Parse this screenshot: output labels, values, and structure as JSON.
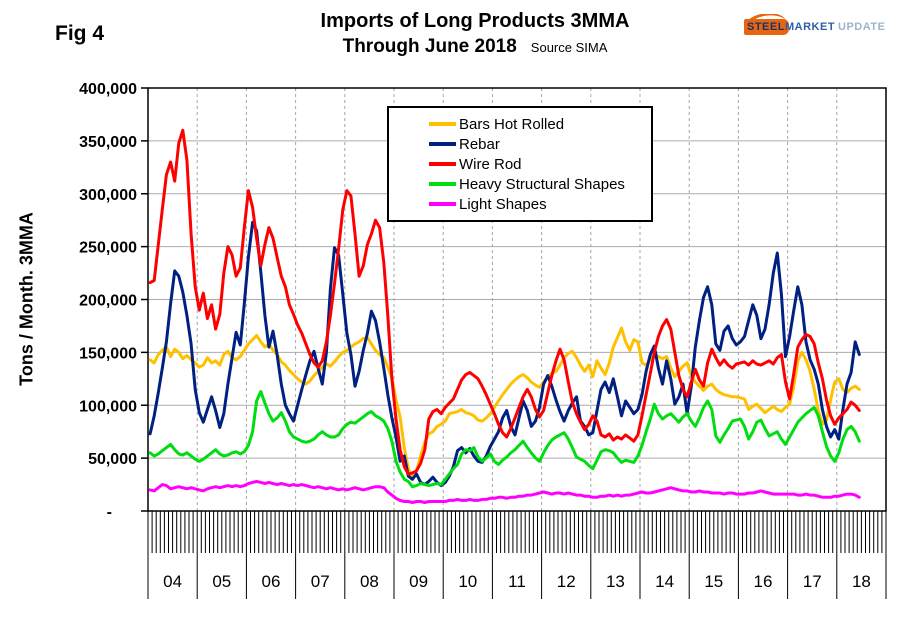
{
  "header": {
    "fig_label": "Fig 4",
    "title": "Imports of Long Products 3MMA",
    "subtitle": "Through June 2018",
    "source": "Source SIMA"
  },
  "logo": {
    "steel": "STEEL",
    "market": "MARKET",
    "update": "UPDATE"
  },
  "chart_data": {
    "type": "line",
    "title": "Imports of Long Products 3MMA",
    "subtitle": "Through June 2018",
    "source": "Source SIMA",
    "ylabel": "Tons / Month. 3MMA",
    "unit": "thousand tons per month (3-month moving average)",
    "ylim": [
      0,
      400000
    ],
    "y_tick_step": 50000,
    "y_tick_labels": [
      "400,000",
      "350,000",
      "300,000",
      "250,000",
      "200,000",
      "150,000",
      "100,000",
      "50,000",
      "-"
    ],
    "x_start": "2004-01",
    "x_end": "2018-06",
    "x_axis_months_shown": 180,
    "year_labels": [
      "04",
      "05",
      "06",
      "07",
      "08",
      "09",
      "10",
      "11",
      "12",
      "13",
      "14",
      "15",
      "16",
      "17",
      "18"
    ],
    "grid": {
      "horizontal": "solid gray",
      "vertical": "dashed gray at year boundaries"
    },
    "legend_position": "inside top center",
    "series": [
      {
        "name": "Bars Hot Rolled",
        "color": "#FFC000",
        "values_thousand_tons": [
          143,
          140,
          148,
          152,
          155,
          146,
          153,
          150,
          144,
          147,
          143,
          140,
          136,
          138,
          145,
          140,
          142,
          138,
          148,
          151,
          145,
          143,
          146,
          152,
          158,
          162,
          166,
          160,
          155,
          158,
          152,
          148,
          141,
          138,
          133,
          129,
          125,
          122,
          120,
          123,
          128,
          132,
          136,
          139,
          137,
          141,
          146,
          150,
          152,
          155,
          158,
          160,
          163,
          164,
          158,
          152,
          148,
          145,
          136,
          126,
          105,
          89,
          60,
          40,
          32,
          38,
          52,
          65,
          73,
          75,
          80,
          82,
          85,
          92,
          93,
          94,
          96,
          93,
          92,
          90,
          86,
          85,
          88,
          92,
          98,
          104,
          110,
          115,
          120,
          124,
          127,
          129,
          126,
          122,
          119,
          117,
          122,
          127,
          130,
          132,
          138,
          145,
          149,
          151,
          145,
          138,
          132,
          138,
          127,
          142,
          135,
          129,
          140,
          155,
          164,
          173,
          160,
          152,
          162,
          160,
          140,
          138,
          143,
          148,
          146,
          144,
          146,
          135,
          127,
          132,
          137,
          140,
          128,
          122,
          118,
          114,
          118,
          120,
          115,
          112,
          110,
          109,
          108,
          108,
          107,
          106,
          96,
          99,
          101,
          97,
          93,
          96,
          99,
          96,
          94,
          98,
          101,
          118,
          142,
          150,
          143,
          132,
          115,
          95,
          82,
          86,
          105,
          122,
          125,
          115,
          112,
          116,
          118,
          115
        ]
      },
      {
        "name": "Rebar",
        "color": "#002082",
        "values_thousand_tons": [
          73,
          90,
          112,
          135,
          160,
          196,
          227,
          222,
          207,
          185,
          158,
          115,
          93,
          84,
          96,
          108,
          95,
          79,
          92,
          120,
          145,
          169,
          157,
          196,
          240,
          273,
          265,
          226,
          185,
          155,
          170,
          148,
          120,
          100,
          92,
          85,
          100,
          115,
          129,
          142,
          151,
          135,
          120,
          150,
          210,
          249,
          242,
          205,
          168,
          148,
          118,
          132,
          152,
          168,
          189,
          180,
          160,
          135,
          110,
          88,
          70,
          47,
          52,
          33,
          30,
          35,
          27,
          25,
          28,
          32,
          27,
          24,
          27,
          33,
          42,
          57,
          60,
          55,
          59,
          52,
          47,
          46,
          52,
          61,
          68,
          75,
          88,
          95,
          80,
          72,
          88,
          104,
          95,
          80,
          85,
          98,
          120,
          128,
          118,
          105,
          94,
          85,
          95,
          102,
          108,
          85,
          80,
          72,
          74,
          95,
          115,
          122,
          112,
          125,
          108,
          90,
          104,
          98,
          92,
          96,
          110,
          132,
          148,
          156,
          135,
          120,
          142,
          125,
          101,
          108,
          120,
          92,
          118,
          155,
          180,
          202,
          212,
          195,
          158,
          152,
          170,
          175,
          163,
          157,
          160,
          165,
          180,
          195,
          185,
          163,
          172,
          195,
          225,
          244,
          205,
          146,
          165,
          190,
          212,
          195,
          160,
          143,
          134,
          120,
          96,
          80,
          70,
          77,
          68,
          96,
          120,
          131,
          160,
          148
        ]
      },
      {
        "name": "Wire Rod",
        "color": "#FF0000",
        "values_thousand_tons": [
          216,
          218,
          252,
          285,
          318,
          330,
          312,
          348,
          360,
          332,
          262,
          212,
          190,
          206,
          182,
          195,
          172,
          186,
          225,
          250,
          242,
          222,
          230,
          268,
          303,
          287,
          258,
          232,
          252,
          268,
          258,
          240,
          222,
          212,
          195,
          186,
          176,
          168,
          158,
          148,
          140,
          136,
          142,
          160,
          185,
          215,
          248,
          285,
          303,
          298,
          262,
          222,
          232,
          252,
          262,
          275,
          268,
          235,
          185,
          125,
          87,
          58,
          42,
          35,
          36,
          38,
          45,
          58,
          87,
          94,
          96,
          92,
          98,
          102,
          106,
          115,
          124,
          129,
          131,
          128,
          125,
          118,
          110,
          101,
          92,
          82,
          74,
          70,
          78,
          88,
          98,
          108,
          115,
          108,
          96,
          89,
          95,
          112,
          128,
          142,
          153,
          143,
          122,
          103,
          92,
          84,
          77,
          82,
          90,
          85,
          72,
          70,
          73,
          67,
          70,
          68,
          72,
          69,
          66,
          72,
          90,
          110,
          130,
          150,
          165,
          175,
          181,
          172,
          150,
          128,
          115,
          108,
          122,
          134,
          124,
          118,
          140,
          153,
          145,
          138,
          143,
          138,
          135,
          139,
          140,
          141,
          138,
          142,
          139,
          138,
          140,
          142,
          139,
          145,
          148,
          122,
          106,
          130,
          155,
          162,
          167,
          165,
          158,
          140,
          125,
          105,
          90,
          82,
          88,
          92,
          96,
          103,
          100,
          95
        ]
      },
      {
        "name": "Heavy Structural Shapes",
        "color": "#00DD10",
        "values_thousand_tons": [
          55,
          52,
          54,
          57,
          60,
          63,
          58,
          54,
          53,
          55,
          52,
          49,
          47,
          49,
          52,
          55,
          58,
          54,
          52,
          53,
          55,
          56,
          54,
          56,
          62,
          75,
          104,
          113,
          102,
          92,
          85,
          88,
          93,
          85,
          75,
          70,
          68,
          66,
          65,
          66,
          68,
          72,
          75,
          72,
          70,
          70,
          72,
          78,
          82,
          84,
          83,
          86,
          89,
          92,
          94,
          90,
          88,
          85,
          78,
          66,
          47,
          37,
          30,
          28,
          23,
          24,
          26,
          25,
          24,
          25,
          26,
          25,
          30,
          35,
          40,
          44,
          54,
          58,
          57,
          60,
          51,
          47,
          50,
          54,
          47,
          44,
          48,
          51,
          55,
          58,
          62,
          66,
          60,
          55,
          50,
          47,
          55,
          62,
          67,
          70,
          72,
          74,
          68,
          60,
          51,
          49,
          47,
          43,
          40,
          48,
          56,
          58,
          57,
          55,
          50,
          46,
          48,
          47,
          46,
          52,
          62,
          75,
          87,
          101,
          92,
          87,
          90,
          92,
          88,
          84,
          89,
          92,
          85,
          80,
          88,
          98,
          104,
          96,
          71,
          65,
          72,
          78,
          85,
          86,
          87,
          80,
          68,
          75,
          84,
          86,
          78,
          71,
          73,
          75,
          68,
          63,
          70,
          77,
          84,
          88,
          92,
          95,
          98,
          90,
          75,
          61,
          52,
          47,
          55,
          68,
          77,
          80,
          75,
          66
        ]
      },
      {
        "name": "Light Shapes",
        "color": "#FF00FF",
        "values_thousand_tons": [
          20,
          19,
          22,
          25,
          24,
          21,
          22,
          23,
          22,
          21,
          22,
          21,
          20,
          19,
          21,
          22,
          23,
          22,
          23,
          24,
          23,
          24,
          23,
          24,
          26,
          27,
          28,
          27,
          26,
          27,
          26,
          25,
          26,
          25,
          24,
          25,
          24,
          25,
          24,
          23,
          22,
          23,
          22,
          21,
          22,
          21,
          20,
          21,
          20,
          21,
          22,
          21,
          20,
          21,
          22,
          23,
          23,
          22,
          18,
          15,
          12,
          10,
          9,
          9,
          8,
          9,
          9,
          8,
          9,
          9,
          9,
          9,
          9,
          10,
          10,
          11,
          10,
          10,
          11,
          10,
          10,
          11,
          11,
          12,
          12,
          13,
          13,
          12,
          13,
          13,
          14,
          14,
          15,
          15,
          16,
          17,
          18,
          17,
          16,
          17,
          17,
          16,
          17,
          16,
          15,
          15,
          14,
          14,
          13,
          13,
          14,
          14,
          15,
          14,
          15,
          14,
          15,
          15,
          16,
          17,
          18,
          17,
          17,
          18,
          19,
          20,
          21,
          22,
          21,
          20,
          19,
          19,
          18,
          18,
          19,
          18,
          18,
          17,
          17,
          17,
          16,
          17,
          17,
          16,
          16,
          16,
          17,
          17,
          18,
          19,
          18,
          17,
          16,
          16,
          16,
          16,
          16,
          16,
          15,
          15,
          16,
          15,
          15,
          14,
          13,
          13,
          13,
          14,
          14,
          15,
          16,
          16,
          15,
          13
        ]
      }
    ]
  }
}
